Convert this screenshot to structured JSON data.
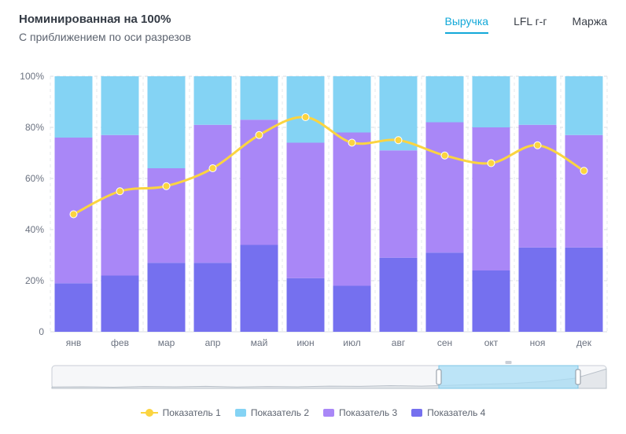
{
  "header": {
    "title": "Номинированная на 100%",
    "subtitle": "С приближением по оси разрезов"
  },
  "tabs": [
    {
      "label": "Выручка",
      "active": true
    },
    {
      "label": "LFL г-г",
      "active": false
    },
    {
      "label": "Маржа",
      "active": false
    }
  ],
  "colors": {
    "accent": "#12a8d8",
    "series1": "#fbd440",
    "series2": "#84d3f4",
    "series3": "#a987f7",
    "series4": "#7570ef"
  },
  "chart_data": {
    "type": "bar",
    "stacked": true,
    "normalized": true,
    "categories": [
      "янв",
      "фев",
      "мар",
      "апр",
      "май",
      "июн",
      "июл",
      "авг",
      "сен",
      "окт",
      "ноя",
      "дек"
    ],
    "y_ticks": [
      "0",
      "20%",
      "40%",
      "60%",
      "80%",
      "100%"
    ],
    "ylim": [
      0,
      100
    ],
    "series": [
      {
        "name": "Показатель 4",
        "kind": "bar",
        "values": [
          19,
          22,
          27,
          27,
          34,
          21,
          18,
          29,
          31,
          24,
          33,
          33
        ]
      },
      {
        "name": "Показатель 3",
        "kind": "bar",
        "values": [
          57,
          55,
          37,
          54,
          49,
          53,
          60,
          42,
          51,
          56,
          48,
          44
        ]
      },
      {
        "name": "Показатель 2",
        "kind": "bar",
        "values": [
          24,
          23,
          36,
          19,
          17,
          26,
          22,
          29,
          18,
          20,
          19,
          23
        ]
      },
      {
        "name": "Показатель 1",
        "kind": "line",
        "values": [
          46,
          55,
          57,
          64,
          77,
          84,
          74,
          75,
          69,
          66,
          73,
          63
        ]
      }
    ],
    "grid": true,
    "legend_position": "bottom",
    "navigator": {
      "selected_start": "ноя",
      "selected_end": "дек"
    }
  },
  "legend": [
    {
      "label": "Показатель 1",
      "type": "line",
      "color": "#fbd440"
    },
    {
      "label": "Показатель 2",
      "type": "bar",
      "color": "#84d3f4"
    },
    {
      "label": "Показатель 3",
      "type": "bar",
      "color": "#a987f7"
    },
    {
      "label": "Показатель 4",
      "type": "bar",
      "color": "#7570ef"
    }
  ]
}
